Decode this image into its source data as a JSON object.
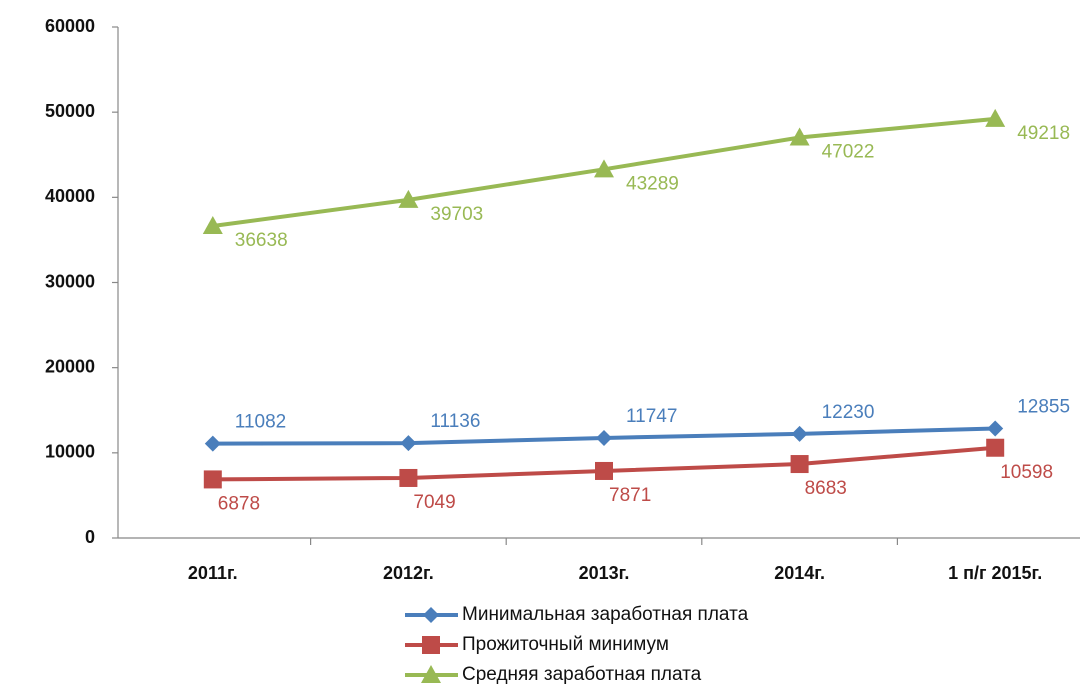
{
  "chart_data": {
    "type": "line",
    "categories": [
      "2011г.",
      "2012г.",
      "2013г.",
      "2014г.",
      "1 п/г 2015г."
    ],
    "series": [
      {
        "name": "Минимальная заработная плата",
        "color": "#4a7ebb",
        "marker": "diamond",
        "values": [
          11082,
          11136,
          11747,
          12230,
          12855
        ]
      },
      {
        "name": "Прожиточный минимум",
        "color": "#be4b48",
        "marker": "square",
        "values": [
          6878,
          7049,
          7871,
          8683,
          10598
        ]
      },
      {
        "name": "Средняя заработная плата",
        "color": "#98b954",
        "marker": "triangle",
        "values": [
          36638,
          39703,
          43289,
          47022,
          49218
        ]
      }
    ],
    "ylim": [
      0,
      60000
    ],
    "yticks": [
      0,
      10000,
      20000,
      30000,
      40000,
      50000,
      60000
    ],
    "grid": false
  }
}
